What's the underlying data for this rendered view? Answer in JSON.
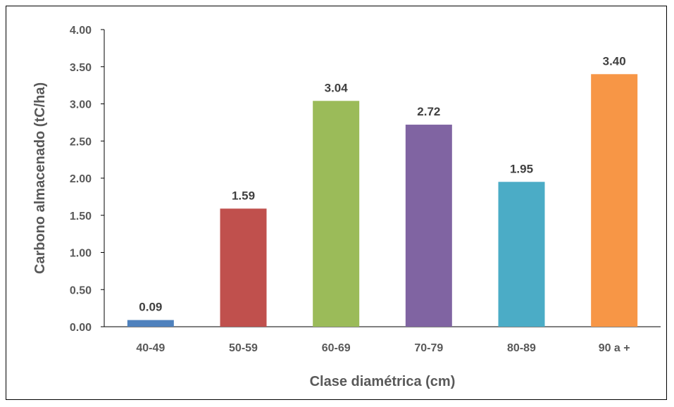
{
  "chart_data": {
    "type": "bar",
    "title": "",
    "xlabel": "Clase diamétrica (cm)",
    "ylabel": "Carbono almacenado (tC/ha)",
    "categories": [
      "40-49",
      "50-59",
      "60-69",
      "70-79",
      "80-89",
      "90 a +"
    ],
    "values": [
      0.09,
      1.59,
      3.04,
      2.72,
      1.95,
      3.4
    ],
    "data_labels": [
      "0.09",
      "1.59",
      "3.04",
      "2.72",
      "1.95",
      "3.40"
    ],
    "ylim": [
      0,
      4
    ],
    "yticks": [
      "0.00",
      "0.50",
      "1.00",
      "1.50",
      "2.00",
      "2.50",
      "3.00",
      "3.50",
      "4.00"
    ],
    "colors": [
      "#4F81BD",
      "#C0504D",
      "#9BBB59",
      "#8064A2",
      "#4BACC6",
      "#F79646"
    ],
    "grid": false,
    "legend": "none"
  }
}
